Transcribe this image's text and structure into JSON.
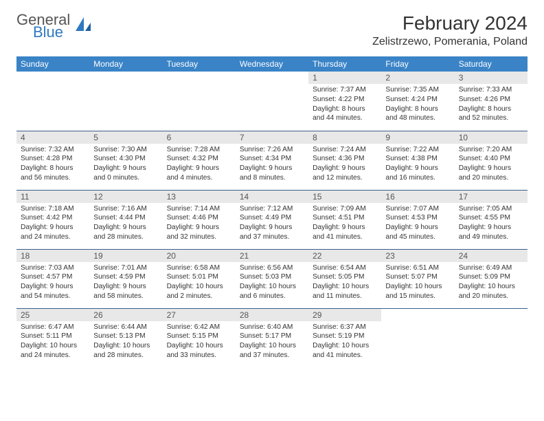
{
  "logo": {
    "general": "General",
    "blue": "Blue"
  },
  "title": "February 2024",
  "location": "Zelistrzewo, Pomerania, Poland",
  "colors": {
    "header_bg": "#3a83c6",
    "header_text": "#ffffff",
    "daynum_bg": "#e8e8e8",
    "row_border": "#3a5f8a",
    "logo_blue": "#2f78c2"
  },
  "weekdays": [
    "Sunday",
    "Monday",
    "Tuesday",
    "Wednesday",
    "Thursday",
    "Friday",
    "Saturday"
  ],
  "weeks": [
    [
      null,
      null,
      null,
      null,
      {
        "n": "1",
        "sunrise": "Sunrise: 7:37 AM",
        "sunset": "Sunset: 4:22 PM",
        "daylight": "Daylight: 8 hours and 44 minutes."
      },
      {
        "n": "2",
        "sunrise": "Sunrise: 7:35 AM",
        "sunset": "Sunset: 4:24 PM",
        "daylight": "Daylight: 8 hours and 48 minutes."
      },
      {
        "n": "3",
        "sunrise": "Sunrise: 7:33 AM",
        "sunset": "Sunset: 4:26 PM",
        "daylight": "Daylight: 8 hours and 52 minutes."
      }
    ],
    [
      {
        "n": "4",
        "sunrise": "Sunrise: 7:32 AM",
        "sunset": "Sunset: 4:28 PM",
        "daylight": "Daylight: 8 hours and 56 minutes."
      },
      {
        "n": "5",
        "sunrise": "Sunrise: 7:30 AM",
        "sunset": "Sunset: 4:30 PM",
        "daylight": "Daylight: 9 hours and 0 minutes."
      },
      {
        "n": "6",
        "sunrise": "Sunrise: 7:28 AM",
        "sunset": "Sunset: 4:32 PM",
        "daylight": "Daylight: 9 hours and 4 minutes."
      },
      {
        "n": "7",
        "sunrise": "Sunrise: 7:26 AM",
        "sunset": "Sunset: 4:34 PM",
        "daylight": "Daylight: 9 hours and 8 minutes."
      },
      {
        "n": "8",
        "sunrise": "Sunrise: 7:24 AM",
        "sunset": "Sunset: 4:36 PM",
        "daylight": "Daylight: 9 hours and 12 minutes."
      },
      {
        "n": "9",
        "sunrise": "Sunrise: 7:22 AM",
        "sunset": "Sunset: 4:38 PM",
        "daylight": "Daylight: 9 hours and 16 minutes."
      },
      {
        "n": "10",
        "sunrise": "Sunrise: 7:20 AM",
        "sunset": "Sunset: 4:40 PM",
        "daylight": "Daylight: 9 hours and 20 minutes."
      }
    ],
    [
      {
        "n": "11",
        "sunrise": "Sunrise: 7:18 AM",
        "sunset": "Sunset: 4:42 PM",
        "daylight": "Daylight: 9 hours and 24 minutes."
      },
      {
        "n": "12",
        "sunrise": "Sunrise: 7:16 AM",
        "sunset": "Sunset: 4:44 PM",
        "daylight": "Daylight: 9 hours and 28 minutes."
      },
      {
        "n": "13",
        "sunrise": "Sunrise: 7:14 AM",
        "sunset": "Sunset: 4:46 PM",
        "daylight": "Daylight: 9 hours and 32 minutes."
      },
      {
        "n": "14",
        "sunrise": "Sunrise: 7:12 AM",
        "sunset": "Sunset: 4:49 PM",
        "daylight": "Daylight: 9 hours and 37 minutes."
      },
      {
        "n": "15",
        "sunrise": "Sunrise: 7:09 AM",
        "sunset": "Sunset: 4:51 PM",
        "daylight": "Daylight: 9 hours and 41 minutes."
      },
      {
        "n": "16",
        "sunrise": "Sunrise: 7:07 AM",
        "sunset": "Sunset: 4:53 PM",
        "daylight": "Daylight: 9 hours and 45 minutes."
      },
      {
        "n": "17",
        "sunrise": "Sunrise: 7:05 AM",
        "sunset": "Sunset: 4:55 PM",
        "daylight": "Daylight: 9 hours and 49 minutes."
      }
    ],
    [
      {
        "n": "18",
        "sunrise": "Sunrise: 7:03 AM",
        "sunset": "Sunset: 4:57 PM",
        "daylight": "Daylight: 9 hours and 54 minutes."
      },
      {
        "n": "19",
        "sunrise": "Sunrise: 7:01 AM",
        "sunset": "Sunset: 4:59 PM",
        "daylight": "Daylight: 9 hours and 58 minutes."
      },
      {
        "n": "20",
        "sunrise": "Sunrise: 6:58 AM",
        "sunset": "Sunset: 5:01 PM",
        "daylight": "Daylight: 10 hours and 2 minutes."
      },
      {
        "n": "21",
        "sunrise": "Sunrise: 6:56 AM",
        "sunset": "Sunset: 5:03 PM",
        "daylight": "Daylight: 10 hours and 6 minutes."
      },
      {
        "n": "22",
        "sunrise": "Sunrise: 6:54 AM",
        "sunset": "Sunset: 5:05 PM",
        "daylight": "Daylight: 10 hours and 11 minutes."
      },
      {
        "n": "23",
        "sunrise": "Sunrise: 6:51 AM",
        "sunset": "Sunset: 5:07 PM",
        "daylight": "Daylight: 10 hours and 15 minutes."
      },
      {
        "n": "24",
        "sunrise": "Sunrise: 6:49 AM",
        "sunset": "Sunset: 5:09 PM",
        "daylight": "Daylight: 10 hours and 20 minutes."
      }
    ],
    [
      {
        "n": "25",
        "sunrise": "Sunrise: 6:47 AM",
        "sunset": "Sunset: 5:11 PM",
        "daylight": "Daylight: 10 hours and 24 minutes."
      },
      {
        "n": "26",
        "sunrise": "Sunrise: 6:44 AM",
        "sunset": "Sunset: 5:13 PM",
        "daylight": "Daylight: 10 hours and 28 minutes."
      },
      {
        "n": "27",
        "sunrise": "Sunrise: 6:42 AM",
        "sunset": "Sunset: 5:15 PM",
        "daylight": "Daylight: 10 hours and 33 minutes."
      },
      {
        "n": "28",
        "sunrise": "Sunrise: 6:40 AM",
        "sunset": "Sunset: 5:17 PM",
        "daylight": "Daylight: 10 hours and 37 minutes."
      },
      {
        "n": "29",
        "sunrise": "Sunrise: 6:37 AM",
        "sunset": "Sunset: 5:19 PM",
        "daylight": "Daylight: 10 hours and 41 minutes."
      },
      null,
      null
    ]
  ]
}
